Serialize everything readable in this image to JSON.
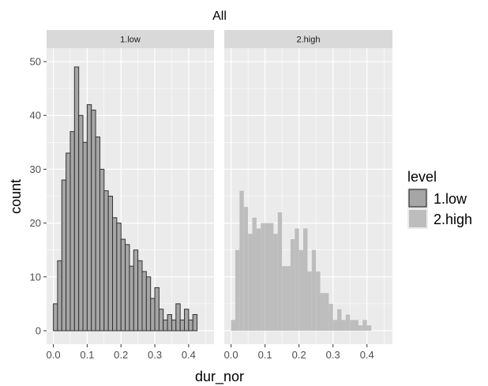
{
  "chart_data": {
    "type": "bar",
    "title": "All",
    "xlabel": "dur_nor",
    "ylabel": "count",
    "xlim": [
      -0.02,
      0.475
    ],
    "ylim": [
      -2.5,
      52.5
    ],
    "bin_width": 0.0125,
    "x_ticks": [
      "0.0",
      "0.1",
      "0.2",
      "0.3",
      "0.4"
    ],
    "x_tick_values": [
      0,
      0.1,
      0.2,
      0.3,
      0.4
    ],
    "y_ticks": [
      "0",
      "10",
      "20",
      "30",
      "40",
      "50"
    ],
    "y_tick_values": [
      0,
      10,
      20,
      30,
      40,
      50
    ],
    "legend": {
      "title": "level",
      "position": "right",
      "entries": [
        "1.low",
        "2.high"
      ]
    },
    "panels": [
      {
        "strip": "1.low",
        "fill": "#a6a6a6",
        "outline": "#333333",
        "bin_start": 0.0,
        "counts": [
          5,
          13,
          28,
          33,
          37,
          49,
          40,
          35,
          42,
          41,
          36,
          30,
          26,
          25,
          21,
          20,
          17,
          16,
          12,
          15,
          13,
          11,
          10,
          6,
          8,
          4,
          2,
          3,
          2,
          5,
          2,
          4,
          2,
          3
        ]
      },
      {
        "strip": "2.high",
        "fill": "#bdbdbd",
        "outline": "none",
        "bin_start": 0.0,
        "counts": [
          2,
          15,
          26,
          23,
          18,
          21,
          19,
          20,
          20,
          20,
          18,
          22,
          12,
          12,
          17,
          19,
          15,
          19,
          11,
          15,
          11,
          7,
          7,
          5,
          2,
          4,
          2,
          3,
          2,
          2,
          1,
          2,
          1
        ]
      }
    ]
  }
}
